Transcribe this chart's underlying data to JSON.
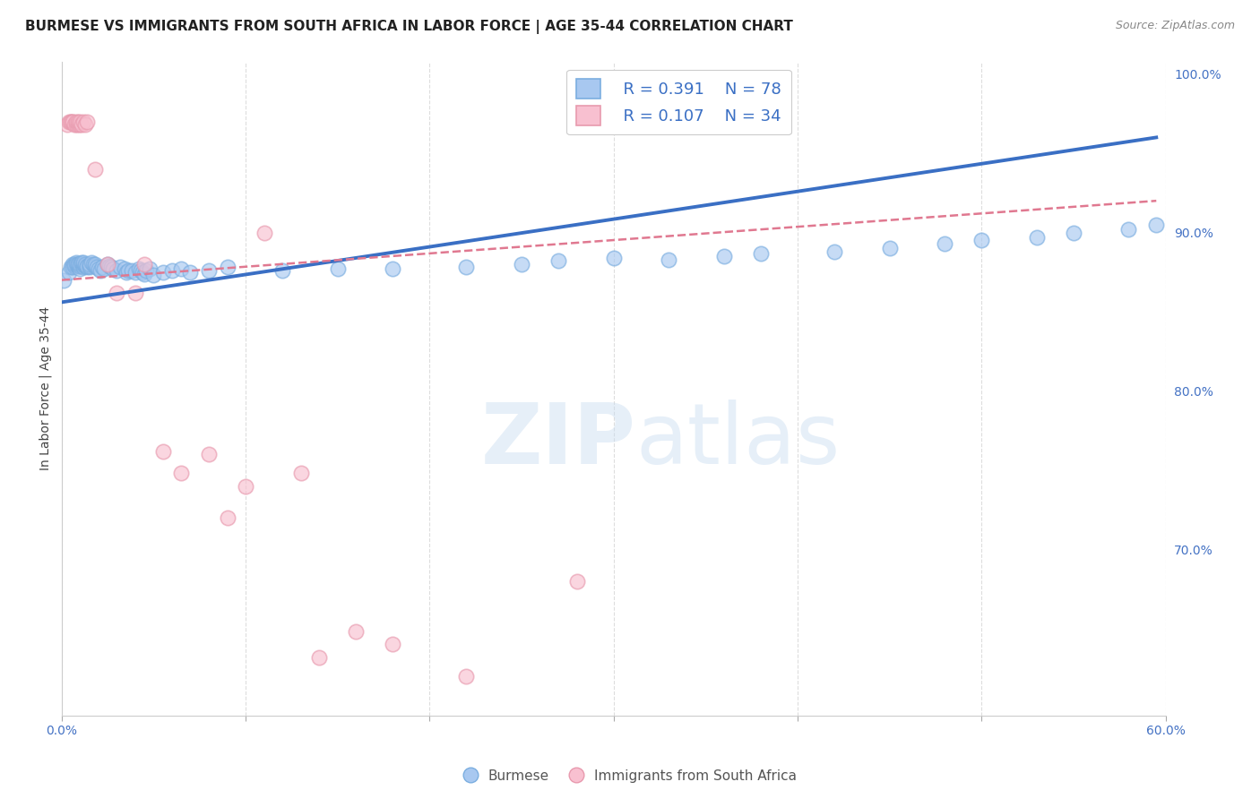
{
  "title": "BURMESE VS IMMIGRANTS FROM SOUTH AFRICA IN LABOR FORCE | AGE 35-44 CORRELATION CHART",
  "source": "Source: ZipAtlas.com",
  "ylabel_label": "In Labor Force | Age 35-44",
  "x_min": 0.0,
  "x_max": 0.6,
  "y_min": 0.595,
  "y_max": 1.008,
  "x_ticks": [
    0.0,
    0.1,
    0.2,
    0.3,
    0.4,
    0.5,
    0.6
  ],
  "x_tick_labels": [
    "0.0%",
    "",
    "",
    "",
    "",
    "",
    "60.0%"
  ],
  "y_tick_labels_right": [
    "100.0%",
    "90.0%",
    "80.0%",
    "70.0%"
  ],
  "y_ticks_right": [
    1.0,
    0.9,
    0.8,
    0.7
  ],
  "blue_color": "#A8C8F0",
  "blue_edge_color": "#7BAEE0",
  "pink_color": "#F8C0D0",
  "pink_edge_color": "#E89AAE",
  "blue_line_color": "#3A6FC4",
  "pink_line_color": "#E07890",
  "legend_R_blue": "R = 0.391",
  "legend_N_blue": "N = 78",
  "legend_R_pink": "R = 0.107",
  "legend_N_pink": "N = 34",
  "blue_scatter_x": [
    0.001,
    0.004,
    0.005,
    0.006,
    0.006,
    0.007,
    0.007,
    0.008,
    0.008,
    0.009,
    0.009,
    0.009,
    0.01,
    0.01,
    0.01,
    0.011,
    0.011,
    0.012,
    0.012,
    0.012,
    0.013,
    0.013,
    0.014,
    0.014,
    0.015,
    0.015,
    0.015,
    0.016,
    0.017,
    0.018,
    0.018,
    0.019,
    0.02,
    0.021,
    0.022,
    0.023,
    0.025,
    0.026,
    0.027,
    0.028,
    0.03,
    0.032,
    0.034,
    0.035,
    0.036,
    0.038,
    0.04,
    0.042,
    0.043,
    0.044,
    0.045,
    0.046,
    0.048,
    0.05,
    0.055,
    0.06,
    0.065,
    0.07,
    0.08,
    0.09,
    0.12,
    0.15,
    0.18,
    0.22,
    0.25,
    0.27,
    0.3,
    0.33,
    0.36,
    0.38,
    0.42,
    0.45,
    0.48,
    0.5,
    0.53,
    0.55,
    0.58,
    0.595
  ],
  "blue_scatter_y": [
    0.87,
    0.875,
    0.878,
    0.88,
    0.878,
    0.879,
    0.88,
    0.881,
    0.88,
    0.879,
    0.88,
    0.88,
    0.877,
    0.879,
    0.88,
    0.88,
    0.881,
    0.878,
    0.88,
    0.881,
    0.879,
    0.88,
    0.878,
    0.879,
    0.878,
    0.879,
    0.88,
    0.881,
    0.88,
    0.879,
    0.88,
    0.878,
    0.877,
    0.876,
    0.878,
    0.877,
    0.88,
    0.879,
    0.878,
    0.877,
    0.876,
    0.878,
    0.877,
    0.875,
    0.876,
    0.876,
    0.875,
    0.877,
    0.876,
    0.875,
    0.874,
    0.876,
    0.877,
    0.873,
    0.875,
    0.876,
    0.877,
    0.875,
    0.876,
    0.878,
    0.876,
    0.877,
    0.877,
    0.878,
    0.88,
    0.882,
    0.884,
    0.883,
    0.885,
    0.887,
    0.888,
    0.89,
    0.893,
    0.895,
    0.897,
    0.9,
    0.902,
    0.905
  ],
  "pink_scatter_x": [
    0.003,
    0.004,
    0.005,
    0.005,
    0.006,
    0.006,
    0.007,
    0.008,
    0.008,
    0.009,
    0.009,
    0.01,
    0.01,
    0.011,
    0.012,
    0.013,
    0.014,
    0.018,
    0.025,
    0.03,
    0.04,
    0.045,
    0.055,
    0.065,
    0.08,
    0.09,
    0.1,
    0.11,
    0.13,
    0.14,
    0.16,
    0.18,
    0.22,
    0.28
  ],
  "pink_scatter_y": [
    0.968,
    0.97,
    0.97,
    0.97,
    0.97,
    0.97,
    0.968,
    0.968,
    0.97,
    0.968,
    0.97,
    0.968,
    0.97,
    0.968,
    0.97,
    0.968,
    0.97,
    0.94,
    0.88,
    0.862,
    0.862,
    0.88,
    0.762,
    0.748,
    0.76,
    0.72,
    0.74,
    0.9,
    0.748,
    0.632,
    0.648,
    0.64,
    0.62,
    0.68
  ],
  "blue_line_x": [
    0.0,
    0.595
  ],
  "blue_line_y": [
    0.856,
    0.96
  ],
  "pink_line_x": [
    0.0,
    0.595
  ],
  "pink_line_y": [
    0.87,
    0.92
  ],
  "watermark_zip": "ZIP",
  "watermark_atlas": "atlas",
  "background_color": "#FFFFFF",
  "grid_color": "#DDDDDD",
  "title_fontsize": 11,
  "axis_label_fontsize": 10,
  "tick_fontsize": 10,
  "legend_fontsize": 13,
  "source_fontsize": 9,
  "marker_size": 140
}
